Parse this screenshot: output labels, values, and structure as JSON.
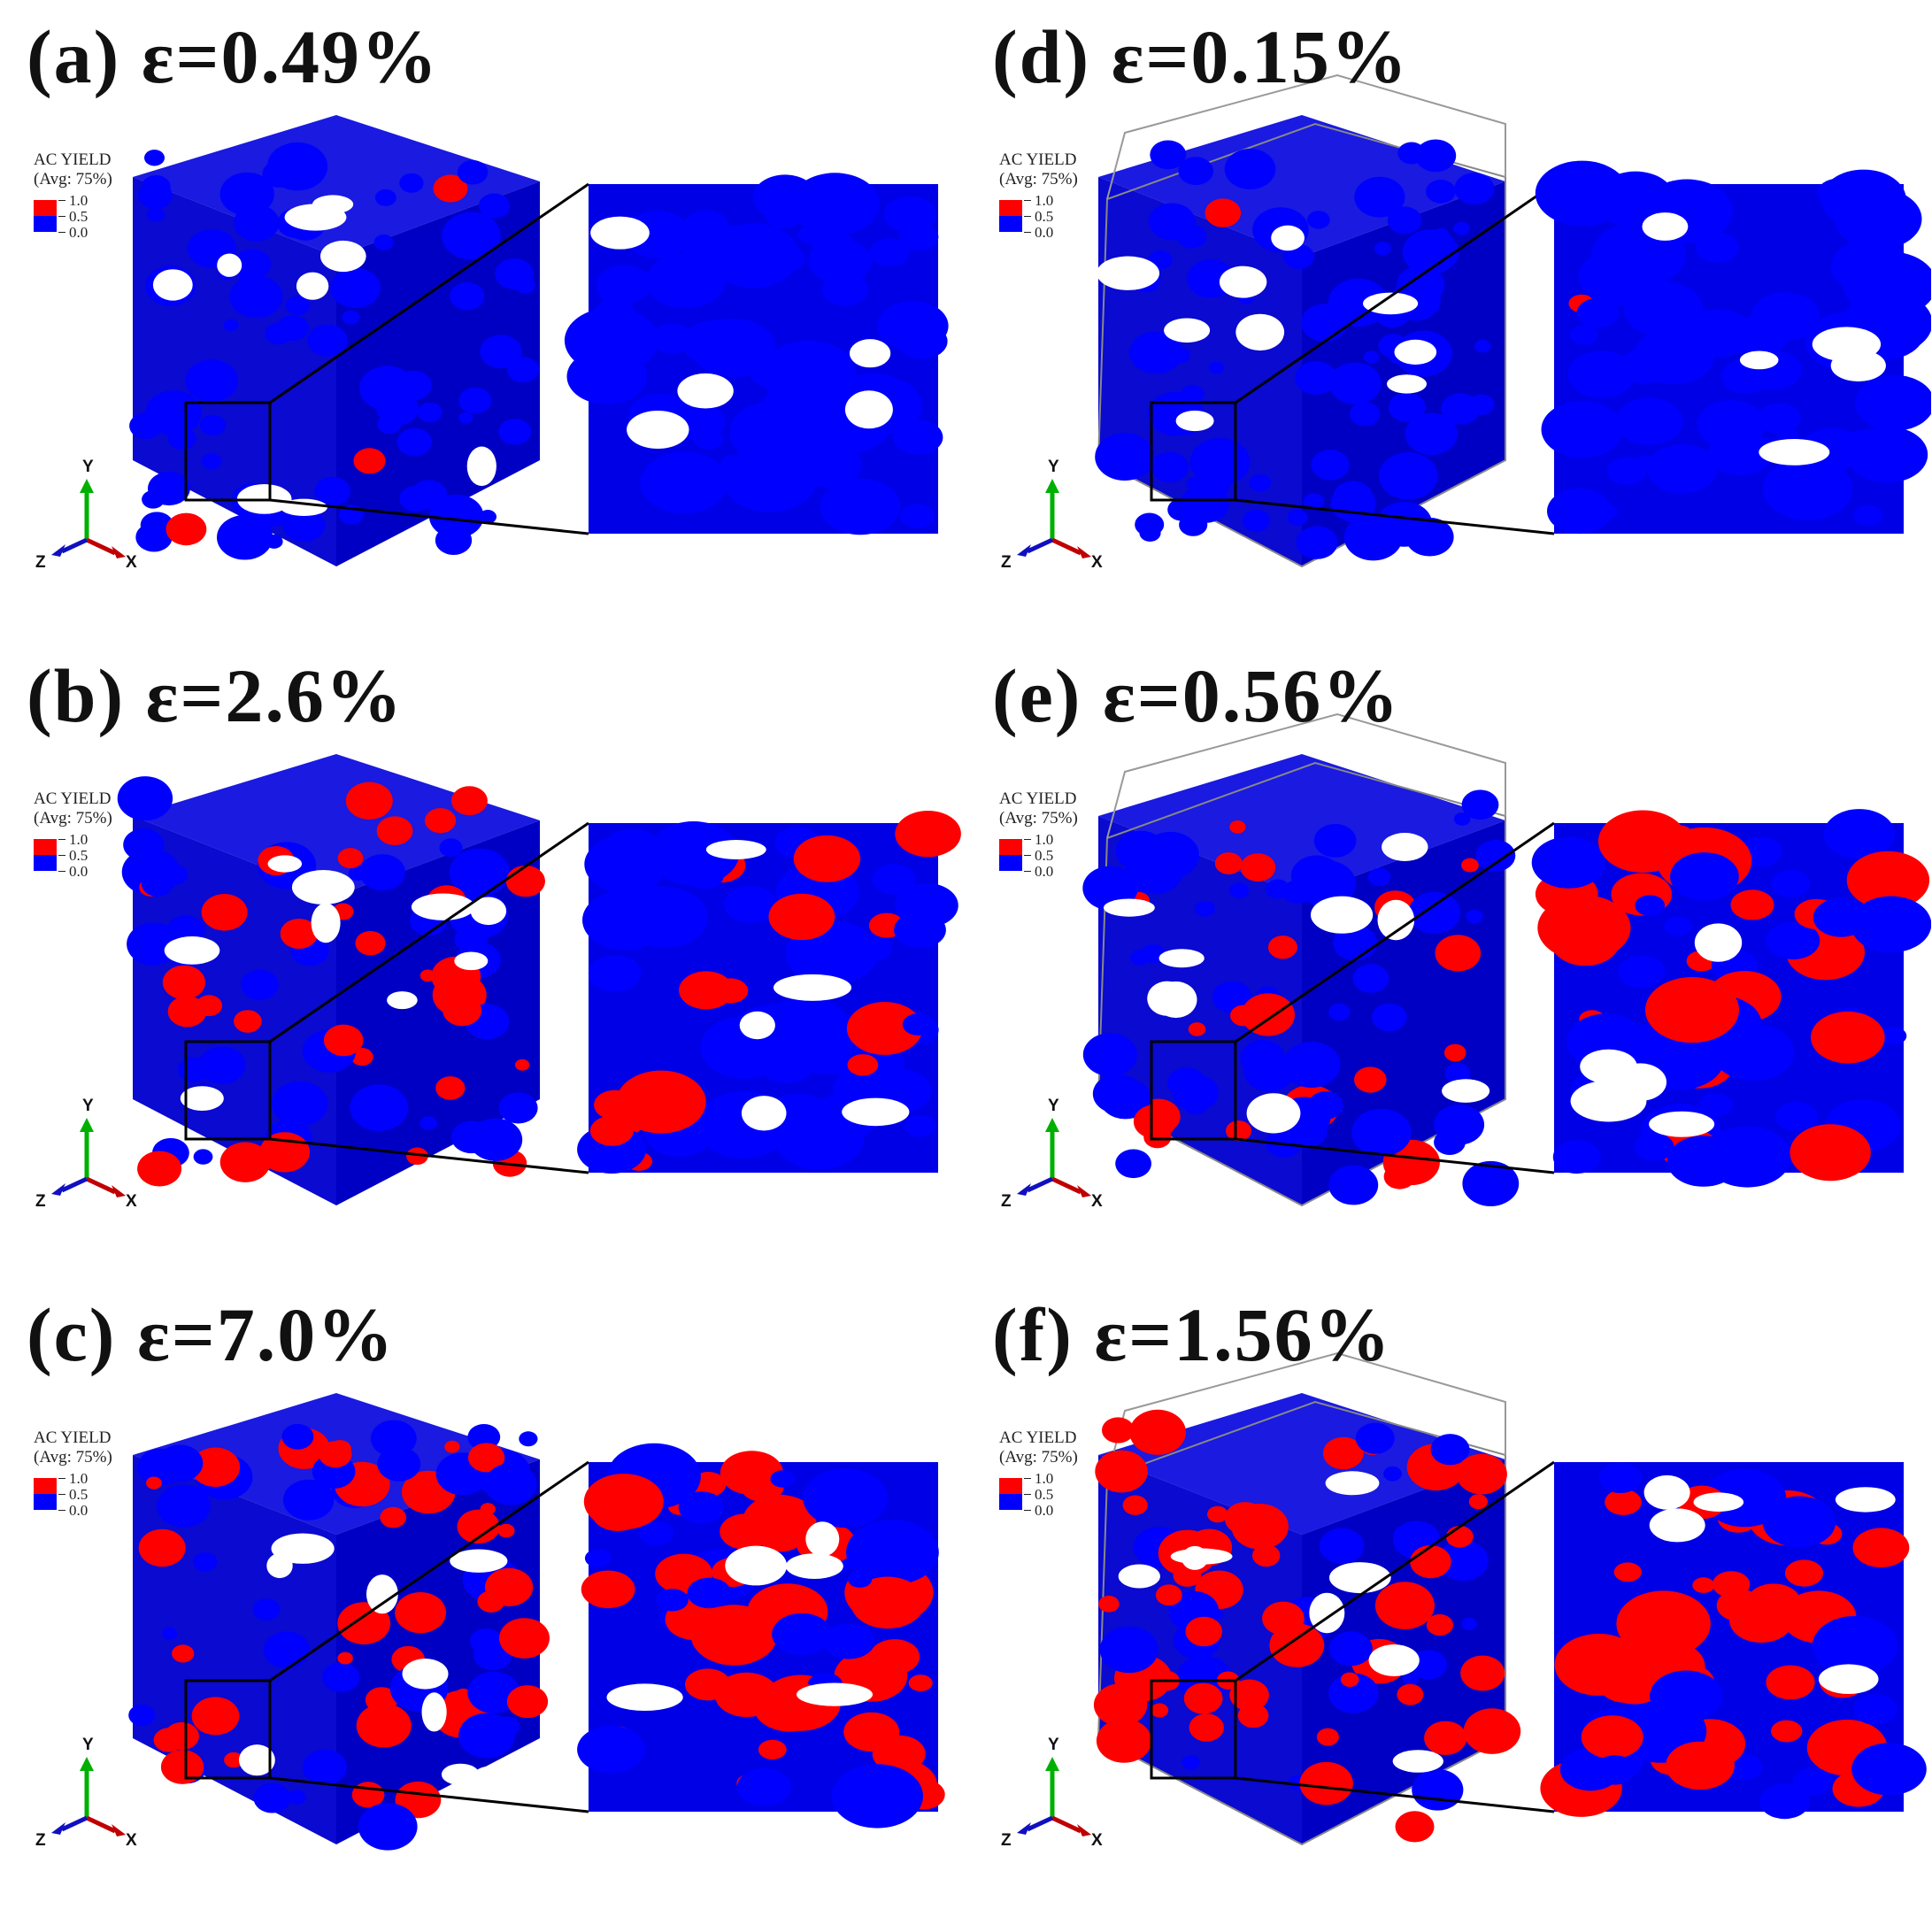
{
  "legend": {
    "title": "AC YIELD",
    "subtitle": "(Avg: 75%)",
    "ticks": [
      "1.0",
      "0.5",
      "0.0"
    ]
  },
  "axis_labels": {
    "x": "X",
    "y": "Y",
    "z": "Z"
  },
  "colors": {
    "yielded": "#ff0000",
    "elastic": "#0000ff",
    "x_axis": "#c00000",
    "y_axis": "#00b000",
    "z_axis": "#1010c0"
  },
  "panels": [
    {
      "label": "(a) ε=0.49%",
      "yield_fraction": 0.05,
      "frame": false
    },
    {
      "label": "(b) ε=2.6%",
      "yield_fraction": 0.35,
      "frame": false
    },
    {
      "label": "(c) ε=7.0%",
      "yield_fraction": 0.55,
      "frame": false
    },
    {
      "label": "(d) ε=0.15%",
      "yield_fraction": 0.04,
      "frame": true
    },
    {
      "label": "(e) ε=0.56%",
      "yield_fraction": 0.35,
      "frame": true
    },
    {
      "label": "(f) ε=1.56%",
      "yield_fraction": 0.65,
      "frame": true
    }
  ]
}
